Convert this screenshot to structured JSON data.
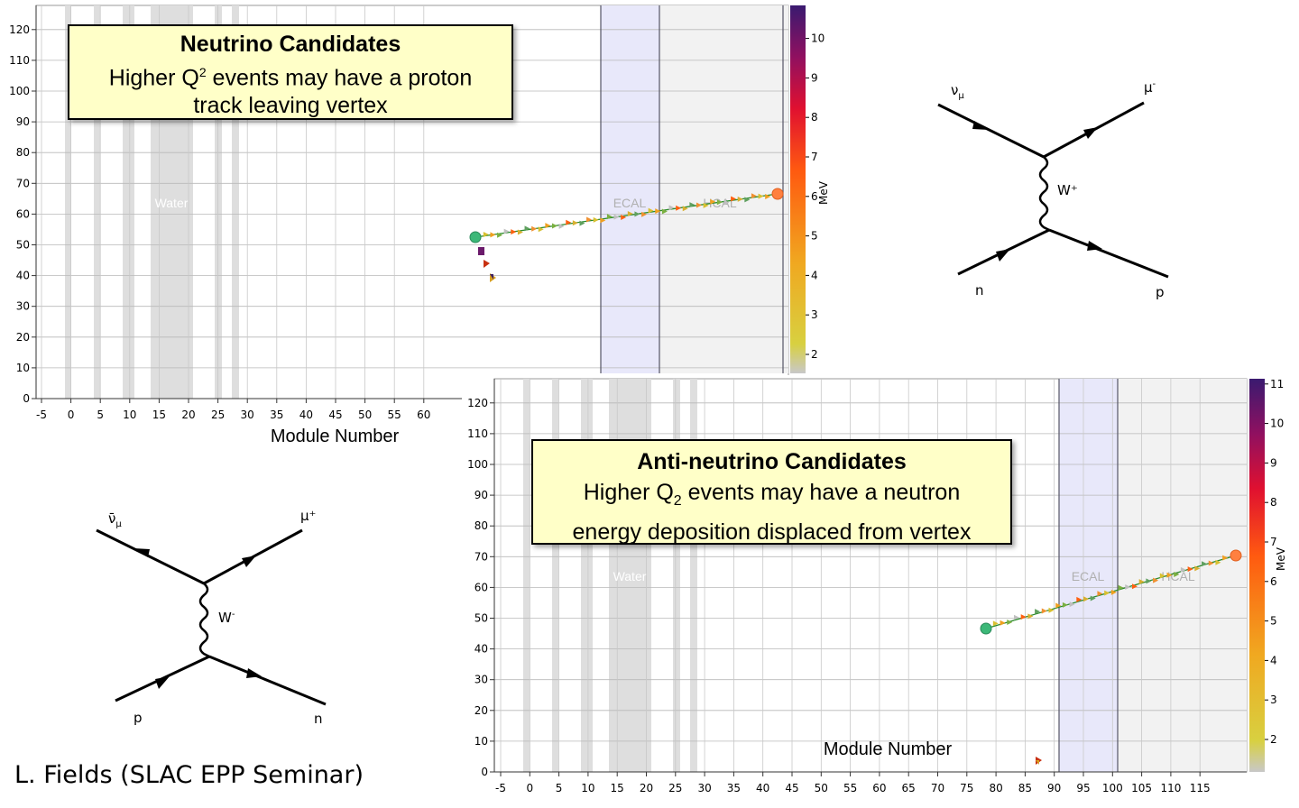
{
  "top_plot": {
    "y_ticks": [
      "0",
      "10",
      "20",
      "30",
      "40",
      "50",
      "60",
      "70",
      "80",
      "90",
      "100",
      "110",
      "120"
    ],
    "x_ticks": [
      "-5",
      "0",
      "5",
      "10",
      "15",
      "20",
      "25",
      "30",
      "35",
      "40",
      "45",
      "50",
      "55",
      "60"
    ],
    "x_title": "Module Number",
    "region_water": "Water",
    "region_ecal": "ECAL",
    "region_hcal": "HCAL",
    "colorbar_ticks": [
      "2",
      "3",
      "4",
      "5",
      "6",
      "7",
      "8",
      "9",
      "10"
    ],
    "colorbar_unit": "MeV"
  },
  "bottom_plot": {
    "y_ticks": [
      "0",
      "10",
      "20",
      "30",
      "40",
      "50",
      "60",
      "70",
      "80",
      "90",
      "100",
      "110",
      "120"
    ],
    "x_ticks": [
      "-5",
      "0",
      "5",
      "10",
      "15",
      "20",
      "25",
      "30",
      "35",
      "40",
      "45",
      "50",
      "55",
      "60",
      "65",
      "70",
      "75",
      "80",
      "85",
      "90",
      "95",
      "100",
      "105",
      "110",
      "115"
    ],
    "x_title": "Module Number",
    "region_water": "Water",
    "region_ecal": "ECAL",
    "region_hcal": "HCAL",
    "colorbar_ticks": [
      "2",
      "3",
      "4",
      "5",
      "6",
      "7",
      "8",
      "9",
      "10",
      "11"
    ],
    "colorbar_unit": "MeV"
  },
  "notes": {
    "neutrino_title": "Neutrino Candidates",
    "neutrino_line1_pre": "Higher Q",
    "neutrino_line1_sup": "2",
    "neutrino_line1_post": " events may have a proton",
    "neutrino_line2": "track leaving vertex",
    "anti_title": "Anti-neutrino Candidates",
    "anti_line1_pre": "Higher Q",
    "anti_line1_sub": "2",
    "anti_line1_post": " events may have a neutron",
    "anti_line2": "energy deposition displaced from vertex"
  },
  "feynman_nu": {
    "in_lepton": "ν",
    "in_sub": "μ",
    "out_lepton": "μ",
    "out_sup": "-",
    "boson": "W⁺",
    "in_hadron": "n",
    "out_hadron": "p"
  },
  "feynman_antinu": {
    "in_lepton": "ν̄",
    "in_sub": "μ",
    "out_lepton": "μ⁺",
    "boson": "W",
    "boson_sup": "-",
    "in_hadron": "p",
    "out_hadron": "n"
  },
  "credit": "L. Fields (SLAC EPP Seminar)"
}
